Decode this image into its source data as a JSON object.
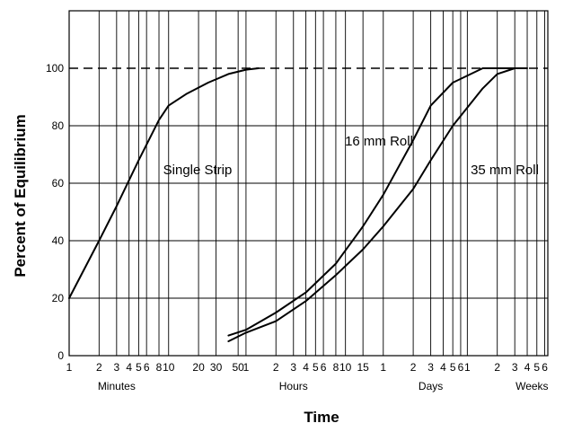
{
  "chart_data": {
    "type": "line",
    "title": "",
    "xlabel": "Time",
    "ylabel": "Percent of Equilibrium",
    "x_scale": "log",
    "ylim": [
      0,
      120
    ],
    "y_ticks": [
      "0",
      "20",
      "40",
      "60",
      "80",
      "100"
    ],
    "x_ticks": [
      {
        "label": "1",
        "minutes": 1
      },
      {
        "label": "2",
        "minutes": 2
      },
      {
        "label": "3",
        "minutes": 3
      },
      {
        "label": "4",
        "minutes": 4
      },
      {
        "label": "5",
        "minutes": 5
      },
      {
        "label": "6",
        "minutes": 6
      },
      {
        "label": "8",
        "minutes": 8
      },
      {
        "label": "10",
        "minutes": 10
      },
      {
        "label": "20",
        "minutes": 20
      },
      {
        "label": "30",
        "minutes": 30
      },
      {
        "label": "50",
        "minutes": 50
      },
      {
        "label": "1",
        "minutes": 60
      },
      {
        "label": "2",
        "minutes": 120
      },
      {
        "label": "3",
        "minutes": 180
      },
      {
        "label": "4",
        "minutes": 240
      },
      {
        "label": "5",
        "minutes": 300
      },
      {
        "label": "6",
        "minutes": 360
      },
      {
        "label": "8",
        "minutes": 480
      },
      {
        "label": "10",
        "minutes": 600
      },
      {
        "label": "15",
        "minutes": 900
      },
      {
        "label": "1",
        "minutes": 1440
      },
      {
        "label": "2",
        "minutes": 2880
      },
      {
        "label": "3",
        "minutes": 4320
      },
      {
        "label": "4",
        "minutes": 5760
      },
      {
        "label": "5",
        "minutes": 7200
      },
      {
        "label": "6",
        "minutes": 8640
      },
      {
        "label": "1",
        "minutes": 10080
      },
      {
        "label": "2",
        "minutes": 20160
      },
      {
        "label": "3",
        "minutes": 30240
      },
      {
        "label": "4",
        "minutes": 40320
      },
      {
        "label": "5",
        "minutes": 50400
      },
      {
        "label": "6",
        "minutes": 60480
      }
    ],
    "x_units": [
      {
        "label": "Minutes",
        "minutes": 3
      },
      {
        "label": "Hours",
        "minutes": 180
      },
      {
        "label": "Days",
        "minutes": 4320
      },
      {
        "label": "Weeks",
        "minutes": 45000
      }
    ],
    "xlim_minutes": [
      1,
      65000
    ],
    "grid": true,
    "reference_line": {
      "y": 100,
      "style": "dashed"
    },
    "series": [
      {
        "name": "Single Strip",
        "x": [
          1,
          2,
          3,
          5,
          8,
          10,
          15,
          25,
          40,
          60,
          80
        ],
        "y": [
          20,
          40,
          52,
          68,
          82,
          87,
          91,
          95,
          98,
          99.5,
          100
        ]
      },
      {
        "name": "16 mm Roll",
        "x": [
          40,
          60,
          120,
          240,
          480,
          900,
          1440,
          2880,
          4320,
          7200,
          14400,
          20160,
          30240
        ],
        "y": [
          7,
          9,
          15,
          22,
          32,
          45,
          56,
          75,
          87,
          95,
          100,
          100,
          100
        ]
      },
      {
        "name": "35 mm Roll",
        "x": [
          40,
          60,
          120,
          240,
          480,
          900,
          1440,
          2880,
          4320,
          7200,
          14400,
          20160,
          30240,
          40320
        ],
        "y": [
          5,
          8,
          12,
          19,
          28,
          37,
          45,
          58,
          68,
          80,
          93,
          98,
          100,
          100
        ]
      }
    ]
  }
}
